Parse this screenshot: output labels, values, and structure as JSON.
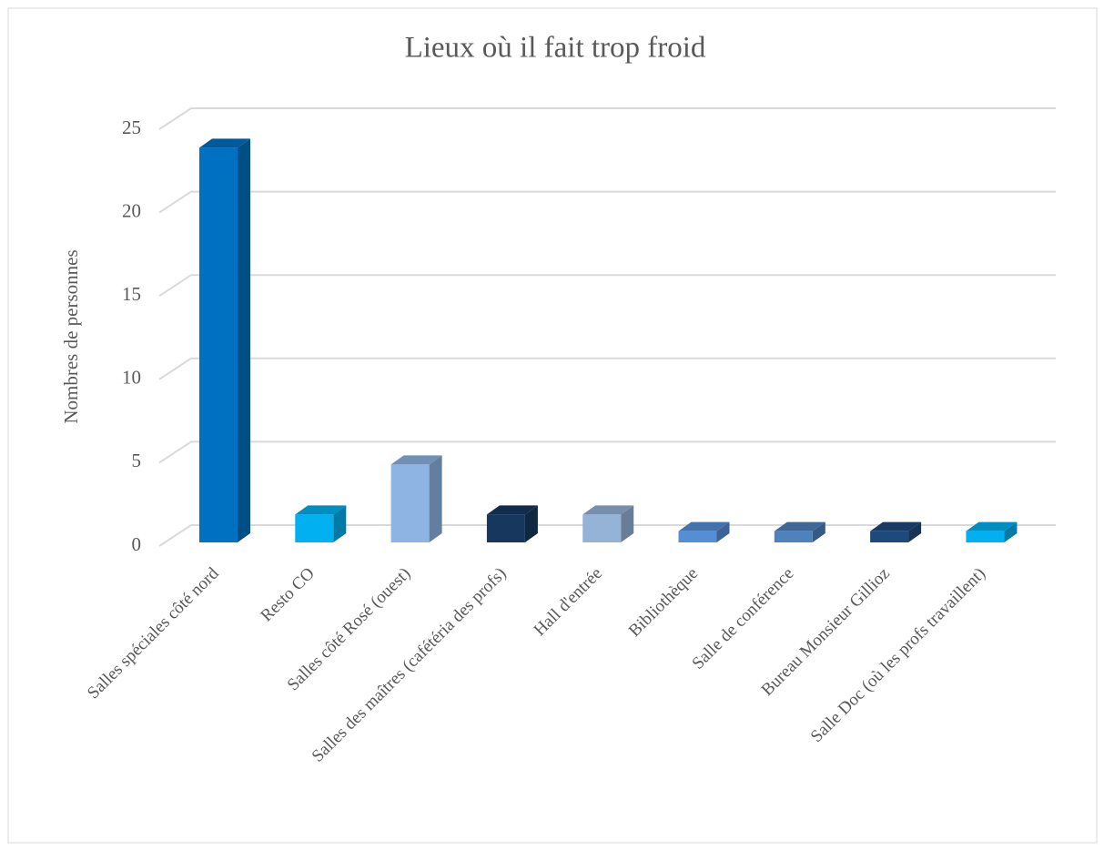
{
  "chart_data": {
    "type": "bar",
    "title": "Lieux où il fait trop froid",
    "y_label": "Nombres de personnes",
    "categories": [
      "Salles spéciales côté nord",
      "Resto CO",
      "Salles côté Rosé (ouest)",
      "Salles des maîtres (cafétéria des profs)",
      "Hall d'entrée",
      "Bibliothèque",
      "Salle de conférence",
      "Bureau Monsieur Gillioz",
      "Salle Doc (où les profs travaillent)"
    ],
    "values": [
      24,
      2,
      5,
      2,
      2,
      1,
      1,
      1,
      1
    ],
    "colors": [
      "#0070c0",
      "#00b0f0",
      "#8eb4e3",
      "#17375e",
      "#95b3d7",
      "#558ed5",
      "#4f81bd",
      "#1f497d",
      "#00b0f0"
    ],
    "ylim": [
      0,
      25
    ],
    "yticks": [
      0,
      5,
      10,
      15,
      20,
      25
    ],
    "grid": true
  }
}
